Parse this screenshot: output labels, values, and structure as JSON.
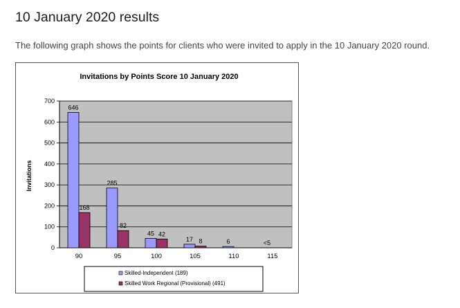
{
  "page": {
    "heading": "10 January 2020 results",
    "intro": "The following graph shows the points for clients who were invited to apply in the 10 January 2020 round."
  },
  "chart_data": {
    "type": "bar",
    "title": "Invitations by Points Score 10 January 2020",
    "xlabel": "",
    "ylabel": "Invitations",
    "ylim": [
      0,
      700
    ],
    "yticks": [
      0,
      100,
      200,
      300,
      400,
      500,
      600,
      700
    ],
    "grid": true,
    "legend_position": "bottom",
    "categories": [
      "90",
      "95",
      "100",
      "105",
      "110",
      "115"
    ],
    "series": [
      {
        "name": "Skilled-Independent (189)",
        "values": [
          646,
          285,
          45,
          17,
          6,
          0
        ],
        "labels": [
          "646",
          "285",
          "45",
          "17",
          "6",
          "<5"
        ],
        "color": "#9999ff"
      },
      {
        "name": "Skilled Work Regional (Provisional) (491)",
        "values": [
          168,
          82,
          42,
          8,
          0,
          0
        ],
        "labels": [
          "168",
          "82",
          "42",
          "8",
          "",
          ""
        ],
        "color": "#993366"
      }
    ],
    "plot_background": "#c0c0c0"
  }
}
